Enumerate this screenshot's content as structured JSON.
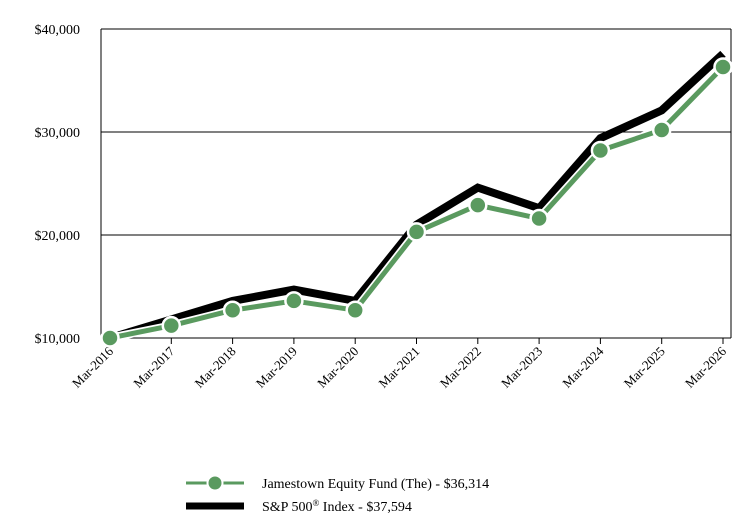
{
  "chart_data": {
    "type": "line",
    "categories": [
      "Mar-2016",
      "Mar-2017",
      "Mar-2018",
      "Mar-2019",
      "Mar-2020",
      "Mar-2021",
      "Mar-2022",
      "Mar-2023",
      "Mar-2024",
      "Mar-2025",
      "Mar-2026"
    ],
    "y_ticks": [
      "$10,000",
      "$20,000",
      "$30,000",
      "$40,000"
    ],
    "ylim": [
      10000,
      40000
    ],
    "grid": true,
    "legend_position": "bottom",
    "series": [
      {
        "name": "S&P 500® Index",
        "legend_label": "S&P 500® Index - $37,594",
        "legend_main": "S&P 500",
        "legend_sup": "®",
        "legend_rest": " Index - $37,594",
        "color": "#000000",
        "values": [
          10000,
          11800,
          13600,
          14700,
          13600,
          21000,
          24600,
          22600,
          29400,
          32100,
          37594
        ]
      },
      {
        "name": "Jamestown Equity Fund (The)",
        "legend_label": "Jamestown Equity Fund (The) - $36,314",
        "color": "#5a9a5f",
        "values": [
          10000,
          11200,
          12700,
          13600,
          12700,
          20300,
          22900,
          21600,
          28200,
          30200,
          36314
        ]
      }
    ]
  }
}
